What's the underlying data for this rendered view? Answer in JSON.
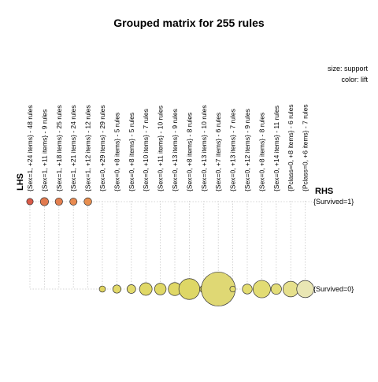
{
  "chart_data": {
    "type": "grouped-matrix",
    "title": "Grouped matrix for 255 rules",
    "legend": {
      "size_label": "size: support",
      "color_label": "color: lift",
      "placement": "top-right"
    },
    "lhs_axis_label": "LHS",
    "rhs_axis_label": "RHS",
    "rhs_rows": [
      "{Survived=1}",
      "{Survived=0}"
    ],
    "lhs_groups": [
      {
        "label": "{Sex=1, +24 items} - 48 rules",
        "rhs": "{Survived=1}",
        "support": 0.35,
        "color": "#d95a48"
      },
      {
        "label": "{Sex=1, +11 items} - 9 rules",
        "rhs": "{Survived=1}",
        "support": 0.55,
        "color": "#e17a4f"
      },
      {
        "label": "{Sex=1, +18 items} - 25 rules",
        "rhs": "{Survived=1}",
        "support": 0.45,
        "color": "#e37f4f"
      },
      {
        "label": "{Sex=1, +21 items} - 24 rules",
        "rhs": "{Survived=1}",
        "support": 0.42,
        "color": "#e88a50"
      },
      {
        "label": "{Sex=1, +12 items} - 12 rules",
        "rhs": "{Survived=1}",
        "support": 0.48,
        "color": "#e88f50"
      },
      {
        "label": "{Sex=0, +29 items} - 29 rules",
        "rhs": "{Survived=0}",
        "support": 0.32,
        "color": "#e0d460"
      },
      {
        "label": "{Sex=0, +8 items} - 5 rules",
        "rhs": "{Survived=0}",
        "support": 0.55,
        "color": "#e2d968"
      },
      {
        "label": "{Sex=0, +8 items} - 5 rules",
        "rhs": "{Survived=0}",
        "support": 0.62,
        "color": "#e2da6c"
      },
      {
        "label": "{Sex=0, +10 items} - 7 rules",
        "rhs": "{Survived=0}",
        "support": 1.3,
        "color": "#e0d866"
      },
      {
        "label": "{Sex=0, +11 items} - 10 rules",
        "rhs": "{Survived=0}",
        "support": 1.1,
        "color": "#e0d866"
      },
      {
        "label": "{Sex=0, +13 items} - 9 rules",
        "rhs": "{Survived=0}",
        "support": 1.4,
        "color": "#e0d866"
      },
      {
        "label": "{Sex=0, +8 items} - 8 rules",
        "rhs": "{Survived=0}",
        "support": 3.6,
        "color": "#ded766"
      },
      {
        "label": "{Sex=0, +13 items} - 10 rules",
        "rhs": "{Survived=0}",
        "support": 0.5,
        "color": "#e2da6a"
      },
      {
        "label": "{Sex=0, +7 items} - 6 rules",
        "rhs": "{Survived=0}",
        "support": 9.5,
        "color": "#dfd874"
      },
      {
        "label": "{Sex=0, +13 items} - 7 rules",
        "rhs": "{Survived=0}",
        "support": 0.28,
        "color": "#e2da6a"
      },
      {
        "label": "{Sex=0, +12 items} - 9 rules",
        "rhs": "{Survived=0}",
        "support": 0.8,
        "color": "#e3dc70"
      },
      {
        "label": "{Sex=0, +8 items} - 8 rules",
        "rhs": "{Survived=0}",
        "support": 2.5,
        "color": "#e2dc74"
      },
      {
        "label": "{Sex=0, +14 items} - 11 rules",
        "rhs": "{Survived=0}",
        "support": 0.9,
        "color": "#e3dd78"
      },
      {
        "label": "{Pclass=0, +8 items} - 6 rules",
        "rhs": "{Survived=0}",
        "support": 2.0,
        "color": "#e6e08c"
      },
      {
        "label": "{Pclass=0, +6 items} - 7 rules",
        "rhs": "{Survived=0}",
        "support": 2.4,
        "color": "#e9e6b4"
      }
    ]
  }
}
